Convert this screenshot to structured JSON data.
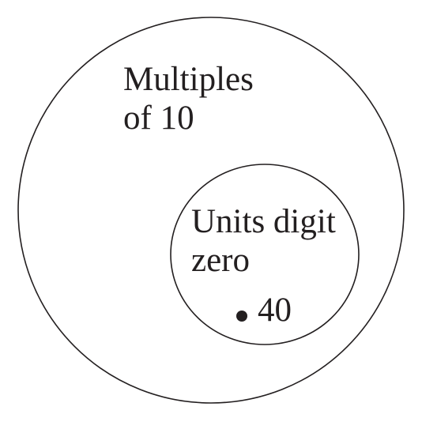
{
  "colors": {
    "stroke": "#231f20",
    "background": "#ffffff"
  },
  "outer_set": {
    "line1": "Multiples",
    "line2": "of 10"
  },
  "inner_set": {
    "line1": "Units digit",
    "line2": "zero"
  },
  "element": {
    "label": "40"
  }
}
